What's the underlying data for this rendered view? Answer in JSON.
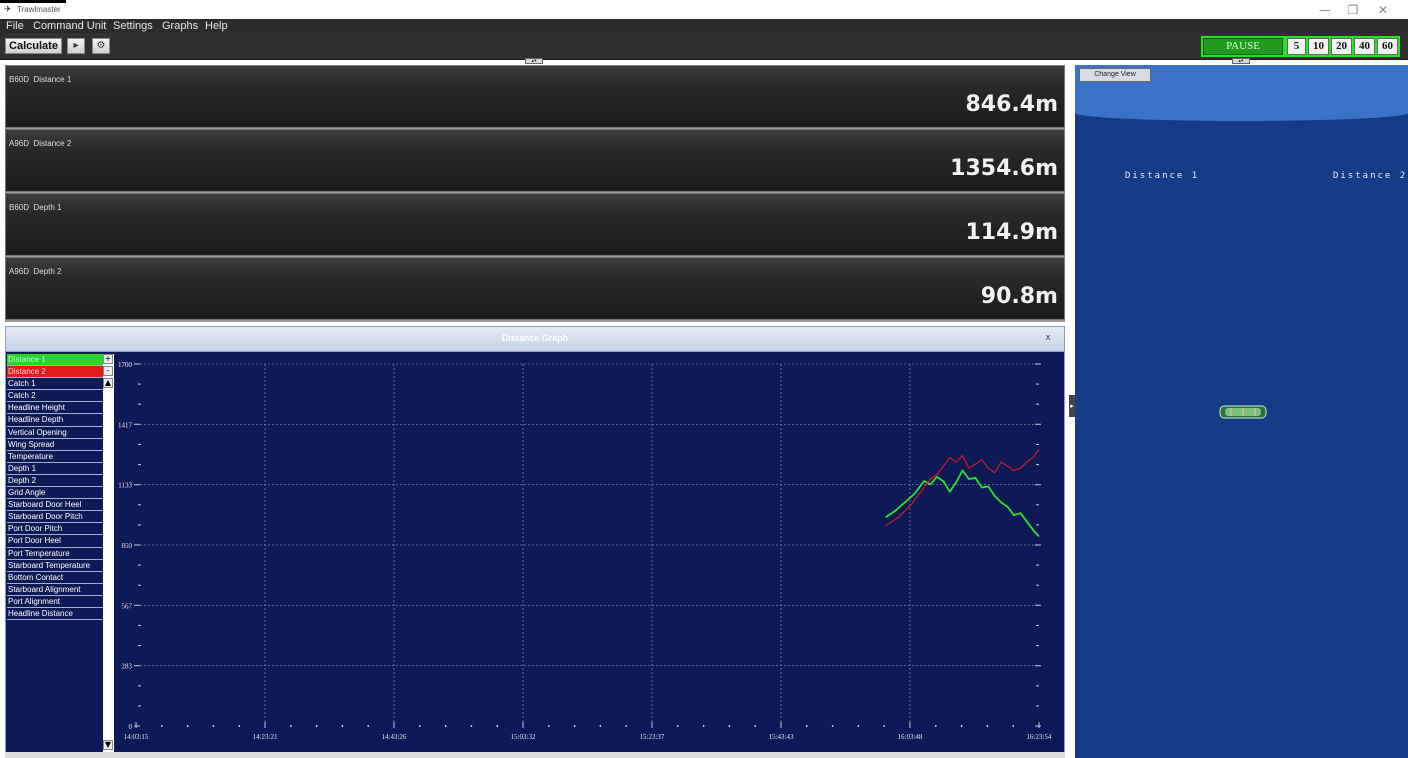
{
  "window": {
    "title": "Trawlmaster",
    "minimize_icon": "minimize-icon",
    "restore_icon": "restore-icon",
    "close_icon": "close-icon"
  },
  "menu": {
    "items": [
      "File",
      "Command Unit",
      "Settings",
      "Graphs",
      "Help"
    ]
  },
  "toolbar": {
    "calculate_label": "Calculate",
    "pause_label": "PAUSE",
    "intervals": [
      "5",
      "10",
      "20",
      "40",
      "60"
    ],
    "colors": {
      "active_frame": "#22e622",
      "pause_fill": "#1f9a1f"
    }
  },
  "readouts": [
    {
      "sensor": "B60D",
      "name": "Distance 1",
      "value": "846.4m"
    },
    {
      "sensor": "A96D",
      "name": "Distance 2",
      "value": "1354.6m"
    },
    {
      "sensor": "B60D",
      "name": "Depth 1",
      "value": "114.9m"
    },
    {
      "sensor": "A96D",
      "name": "Depth 2",
      "value": "90.8m"
    }
  ],
  "graph_window": {
    "title": "Distance Graph",
    "close_label": "x",
    "series_list": [
      {
        "label": "Distance 1",
        "state": "selected-green"
      },
      {
        "label": "Distance 2",
        "state": "selected-red"
      },
      {
        "label": "Catch 1",
        "state": "off"
      },
      {
        "label": "Catch 2",
        "state": "off"
      },
      {
        "label": "Headline Height",
        "state": "off"
      },
      {
        "label": "Headline Depth",
        "state": "off"
      },
      {
        "label": "Vertical Opening",
        "state": "off"
      },
      {
        "label": "Wing Spread",
        "state": "off"
      },
      {
        "label": "Temperature",
        "state": "off"
      },
      {
        "label": "Depth 1",
        "state": "off"
      },
      {
        "label": "Depth 2",
        "state": "off"
      },
      {
        "label": "Grid Angle",
        "state": "off"
      },
      {
        "label": "Starboard Door Heel",
        "state": "off"
      },
      {
        "label": "Starboard Door Pitch",
        "state": "off"
      },
      {
        "label": "Port Door Pitch",
        "state": "off"
      },
      {
        "label": "Port Door Heel",
        "state": "off"
      },
      {
        "label": "Port Temperature",
        "state": "off"
      },
      {
        "label": "Starboard Temperature",
        "state": "off"
      },
      {
        "label": "Bottom Contact",
        "state": "off"
      },
      {
        "label": "Starboard Alignment",
        "state": "off"
      },
      {
        "label": "Port Alignment",
        "state": "off"
      },
      {
        "label": "Headline Distance",
        "state": "off"
      }
    ],
    "scroll_buttons": {
      "plus": "+",
      "minus": "-",
      "up": "▲",
      "down": "▼"
    }
  },
  "chart_data": {
    "type": "line",
    "title": "",
    "xlabel": "",
    "ylabel": "",
    "ylim": [
      0,
      1700
    ],
    "yticks": [
      0,
      283,
      567,
      850,
      1133,
      1417,
      1700
    ],
    "xticks": [
      "14:03:15",
      "14:23:21",
      "14:43:26",
      "15:03:32",
      "15:23:37",
      "15:43:43",
      "16:03:48",
      "16:23:54"
    ],
    "grid": true,
    "series": [
      {
        "name": "Distance 1",
        "color": "#2ee02e",
        "points": [
          [
            "16:00:00",
            980
          ],
          [
            "16:01:30",
            1010
          ],
          [
            "16:03:00",
            1050
          ],
          [
            "16:04:30",
            1090
          ],
          [
            "16:06:00",
            1150
          ],
          [
            "16:07:00",
            1135
          ],
          [
            "16:08:00",
            1170
          ],
          [
            "16:09:00",
            1150
          ],
          [
            "16:10:00",
            1100
          ],
          [
            "16:11:00",
            1145
          ],
          [
            "16:12:00",
            1200
          ],
          [
            "16:13:00",
            1160
          ],
          [
            "16:14:00",
            1165
          ],
          [
            "16:15:00",
            1120
          ],
          [
            "16:16:00",
            1125
          ],
          [
            "16:17:00",
            1080
          ],
          [
            "16:18:00",
            1050
          ],
          [
            "16:19:00",
            1030
          ],
          [
            "16:20:00",
            990
          ],
          [
            "16:21:00",
            1000
          ],
          [
            "16:22:00",
            960
          ],
          [
            "16:23:00",
            920
          ],
          [
            "16:23:54",
            890
          ]
        ]
      },
      {
        "name": "Distance 2",
        "color": "#e01a28",
        "points": [
          [
            "16:00:00",
            940
          ],
          [
            "16:02:00",
            980
          ],
          [
            "16:04:00",
            1040
          ],
          [
            "16:05:30",
            1100
          ],
          [
            "16:07:00",
            1160
          ],
          [
            "16:08:00",
            1180
          ],
          [
            "16:09:00",
            1220
          ],
          [
            "16:10:00",
            1260
          ],
          [
            "16:11:00",
            1240
          ],
          [
            "16:12:00",
            1270
          ],
          [
            "16:13:00",
            1210
          ],
          [
            "16:14:00",
            1230
          ],
          [
            "16:15:00",
            1250
          ],
          [
            "16:16:00",
            1210
          ],
          [
            "16:17:00",
            1190
          ],
          [
            "16:18:00",
            1240
          ],
          [
            "16:19:00",
            1220
          ],
          [
            "16:20:00",
            1200
          ],
          [
            "16:21:00",
            1210
          ],
          [
            "16:22:00",
            1240
          ],
          [
            "16:23:00",
            1260
          ],
          [
            "16:23:54",
            1300
          ]
        ]
      }
    ]
  },
  "view3d": {
    "change_view_label": "Change View",
    "labels": [
      "Distance 1",
      "Distance 2"
    ],
    "colors": {
      "sky": "#3a72c8",
      "water": "#153a86",
      "net": "#7ac27a"
    }
  }
}
